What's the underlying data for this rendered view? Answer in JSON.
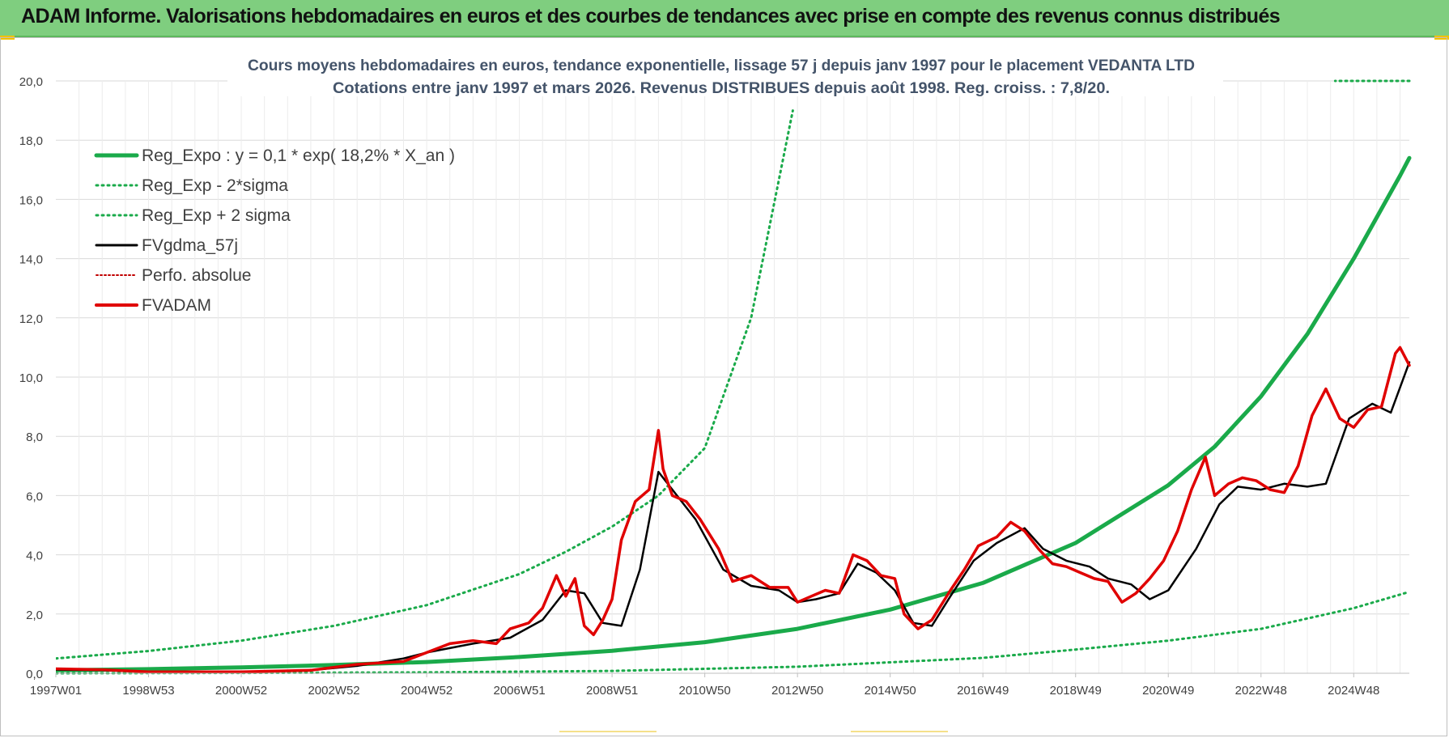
{
  "banner": {
    "title": "ADAM Informe. Valorisations hebdomadaires en euros et des courbes de tendances avec prise en compte des revenus connus distribués"
  },
  "colors": {
    "banner_bg": "#7fce7f",
    "reg_expo": "#1aaa4a",
    "fvgdma": "#000000",
    "fvadam": "#e00000",
    "perfo": "#c00000",
    "grid": "#d9d9d9",
    "corner_accent": "#f2c100"
  },
  "chart_data": {
    "type": "line",
    "title": "Cours moyens hebdomadaires en euros, tendance exponentielle, lissage 57 j depuis janv 1997  pour le  placement VEDANTA LTD",
    "subtitle": "Cotations entre janv 1997 et mars 2026. Revenus DISTRIBUES depuis août 1998. Reg. croiss. : 7,8/20.",
    "ylim": [
      0,
      20
    ],
    "xlim": [
      1997.0,
      2026.2
    ],
    "grid": true,
    "legend_position": "top-left",
    "y_ticks": [
      "0,0",
      "2,0",
      "4,0",
      "6,0",
      "8,0",
      "10,0",
      "12,0",
      "14,0",
      "16,0",
      "18,0",
      "20,0"
    ],
    "x_ticks": [
      {
        "label": "1997W01",
        "x": 1997.0
      },
      {
        "label": "1998W53",
        "x": 1999.0
      },
      {
        "label": "2000W52",
        "x": 2001.0
      },
      {
        "label": "2002W52",
        "x": 2003.0
      },
      {
        "label": "2004W52",
        "x": 2005.0
      },
      {
        "label": "2006W51",
        "x": 2007.0
      },
      {
        "label": "2008W51",
        "x": 2009.0
      },
      {
        "label": "2010W50",
        "x": 2011.0
      },
      {
        "label": "2012W50",
        "x": 2013.0
      },
      {
        "label": "2014W50",
        "x": 2015.0
      },
      {
        "label": "2016W49",
        "x": 2017.0
      },
      {
        "label": "2018W49",
        "x": 2019.0
      },
      {
        "label": "2020W49",
        "x": 2021.0
      },
      {
        "label": "2022W48",
        "x": 2023.0
      },
      {
        "label": "2024W48",
        "x": 2025.0
      }
    ],
    "legend": [
      {
        "label": "Reg_Expo : y = 0,1 * exp( 18,2% *  X_an )",
        "key": "reg_expo"
      },
      {
        "label": "Reg_Exp - 2*sigma",
        "key": "reg_minus"
      },
      {
        "label": "Reg_Exp + 2 sigma",
        "key": "reg_plus"
      },
      {
        "label": "FVgdma_57j",
        "key": "fvgdma"
      },
      {
        "label": "Perfo. absolue",
        "key": "perfo"
      },
      {
        "label": "FVADAM",
        "key": "fvadam"
      }
    ],
    "series": [
      {
        "key": "reg_expo",
        "x": [
          1997.0,
          1999.0,
          2001.0,
          2003.0,
          2005.0,
          2007.0,
          2009.0,
          2011.0,
          2013.0,
          2015.0,
          2017.0,
          2019.0,
          2021.0,
          2022.0,
          2023.0,
          2024.0,
          2025.0,
          2026.0,
          2026.2
        ],
        "y": [
          0.1,
          0.14,
          0.2,
          0.28,
          0.38,
          0.55,
          0.76,
          1.05,
          1.5,
          2.15,
          3.05,
          4.4,
          6.35,
          7.65,
          9.35,
          11.45,
          14.0,
          16.8,
          17.4
        ]
      },
      {
        "key": "reg_plus",
        "x": [
          1997.0,
          1999.0,
          2001.0,
          2003.0,
          2005.0,
          2007.0,
          2008.0,
          2009.0,
          2010.0,
          2011.0,
          2012.0,
          2012.9
        ],
        "y": [
          0.5,
          0.75,
          1.1,
          1.6,
          2.3,
          3.35,
          4.1,
          4.95,
          6.0,
          7.6,
          12.0,
          19.0
        ]
      },
      {
        "key": "reg_minus",
        "x": [
          1997.0,
          2001.0,
          2005.0,
          2009.0,
          2013.0,
          2017.0,
          2019.0,
          2021.0,
          2023.0,
          2025.0,
          2026.2
        ],
        "y": [
          0.0,
          0.01,
          0.03,
          0.08,
          0.22,
          0.52,
          0.8,
          1.1,
          1.5,
          2.2,
          2.75
        ]
      },
      {
        "key": "reg_plus_top",
        "x": [
          2026.2,
          2024.6
        ],
        "y": [
          20.0,
          20.0
        ]
      },
      {
        "key": "fvgdma",
        "x": [
          1997.0,
          1998.0,
          1999.0,
          2001.0,
          2002.5,
          2003.5,
          2004.5,
          2005.0,
          2006.0,
          2006.8,
          2007.5,
          2008.0,
          2008.4,
          2008.8,
          2009.2,
          2009.6,
          2010.0,
          2010.4,
          2010.8,
          2011.4,
          2012.0,
          2012.6,
          2013.0,
          2013.4,
          2013.9,
          2014.3,
          2014.7,
          2015.1,
          2015.5,
          2015.9,
          2016.3,
          2016.8,
          2017.3,
          2017.9,
          2018.3,
          2018.8,
          2019.3,
          2019.7,
          2020.2,
          2020.6,
          2021.0,
          2021.6,
          2022.1,
          2022.5,
          2023.0,
          2023.5,
          2024.0,
          2024.4,
          2024.9,
          2025.4,
          2025.8,
          2026.2
        ],
        "y": [
          0.12,
          0.1,
          0.05,
          0.05,
          0.1,
          0.25,
          0.5,
          0.7,
          1.0,
          1.2,
          1.8,
          2.8,
          2.7,
          1.7,
          1.6,
          3.5,
          6.8,
          6.0,
          5.2,
          3.5,
          2.95,
          2.8,
          2.4,
          2.5,
          2.7,
          3.7,
          3.4,
          2.8,
          1.7,
          1.6,
          2.6,
          3.8,
          4.4,
          4.9,
          4.2,
          3.8,
          3.6,
          3.2,
          3.0,
          2.5,
          2.8,
          4.2,
          5.7,
          6.3,
          6.2,
          6.4,
          6.3,
          6.4,
          8.6,
          9.1,
          8.8,
          10.5
        ]
      },
      {
        "key": "fvadam",
        "x": [
          1997.0,
          1998.0,
          1999.0,
          2001.0,
          2002.5,
          2003.5,
          2004.5,
          2005.0,
          2005.5,
          2006.0,
          2006.5,
          2006.8,
          2007.2,
          2007.5,
          2007.8,
          2008.0,
          2008.2,
          2008.4,
          2008.6,
          2008.8,
          2009.0,
          2009.2,
          2009.5,
          2009.8,
          2010.0,
          2010.1,
          2010.3,
          2010.6,
          2010.9,
          2011.3,
          2011.6,
          2012.0,
          2012.4,
          2012.8,
          2013.0,
          2013.3,
          2013.6,
          2013.9,
          2014.2,
          2014.5,
          2014.8,
          2015.1,
          2015.3,
          2015.6,
          2015.9,
          2016.3,
          2016.6,
          2016.9,
          2017.3,
          2017.6,
          2017.9,
          2018.2,
          2018.5,
          2018.8,
          2019.1,
          2019.4,
          2019.7,
          2020.0,
          2020.3,
          2020.6,
          2020.9,
          2021.2,
          2021.5,
          2021.8,
          2022.0,
          2022.3,
          2022.6,
          2022.9,
          2023.2,
          2023.5,
          2023.8,
          2024.1,
          2024.4,
          2024.7,
          2025.0,
          2025.3,
          2025.6,
          2025.9,
          2026.0,
          2026.2
        ],
        "y": [
          0.15,
          0.12,
          0.05,
          0.05,
          0.1,
          0.3,
          0.4,
          0.7,
          1.0,
          1.1,
          1.0,
          1.5,
          1.7,
          2.2,
          3.3,
          2.6,
          3.2,
          1.6,
          1.3,
          1.8,
          2.5,
          4.5,
          5.8,
          6.2,
          8.2,
          6.9,
          6.0,
          5.8,
          5.2,
          4.2,
          3.1,
          3.3,
          2.9,
          2.9,
          2.4,
          2.6,
          2.8,
          2.7,
          4.0,
          3.8,
          3.3,
          3.2,
          2.0,
          1.5,
          1.8,
          2.8,
          3.5,
          4.3,
          4.6,
          5.1,
          4.8,
          4.2,
          3.7,
          3.6,
          3.4,
          3.2,
          3.1,
          2.4,
          2.7,
          3.2,
          3.8,
          4.8,
          6.2,
          7.3,
          6.0,
          6.4,
          6.6,
          6.5,
          6.2,
          6.1,
          7.0,
          8.7,
          9.6,
          8.6,
          8.3,
          8.9,
          9.0,
          10.8,
          11.0,
          10.4
        ]
      }
    ]
  }
}
